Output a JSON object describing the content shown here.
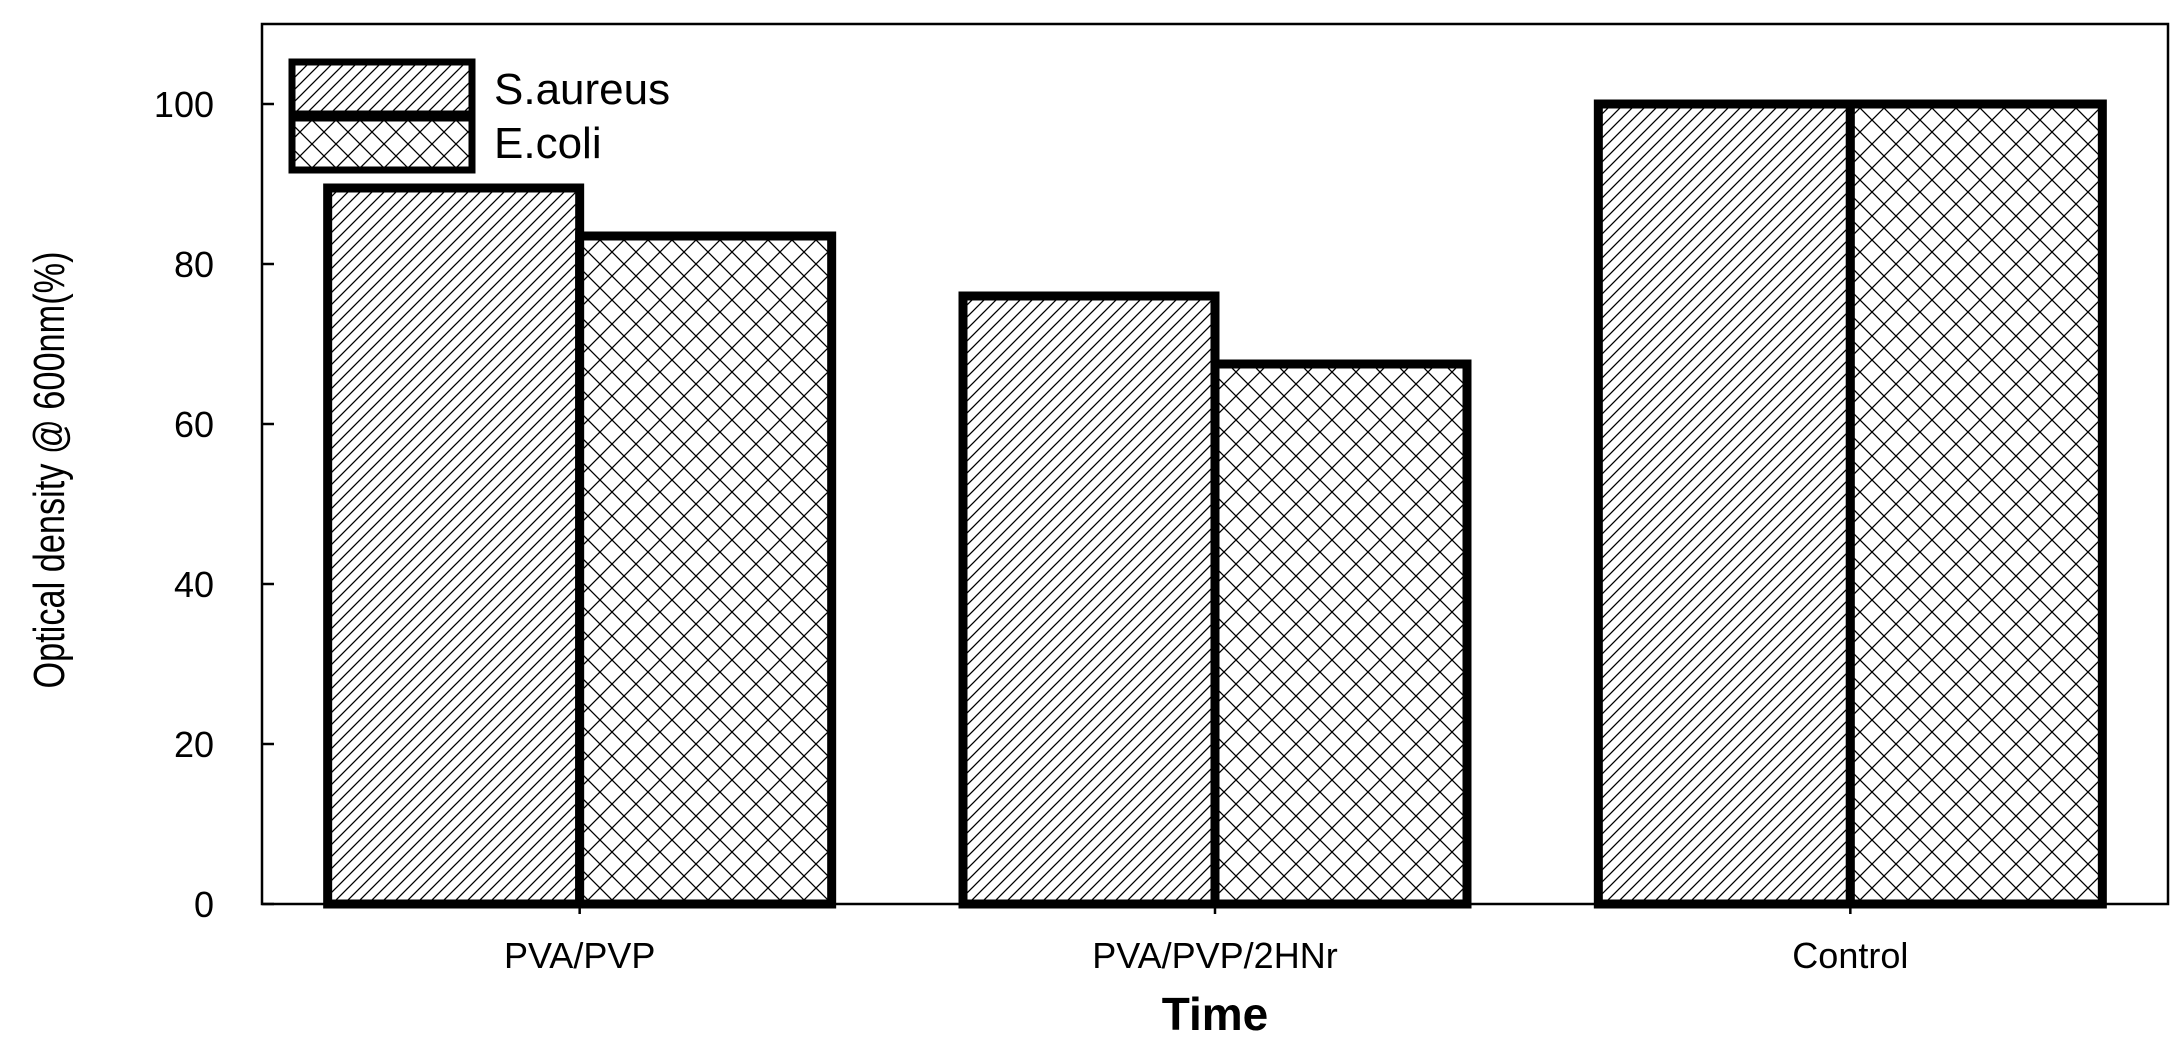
{
  "chart_data": {
    "type": "bar",
    "title": "",
    "xlabel": "Time",
    "ylabel": "Optical density @ 600nm(%)",
    "categories": [
      "PVA/PVP",
      "PVA/PVP/2HNr",
      "Control"
    ],
    "series": [
      {
        "name": "S.aureus",
        "values": [
          89.5,
          76,
          100
        ],
        "pattern": "diagonal-hatch"
      },
      {
        "name": "E.coli",
        "values": [
          83.5,
          67.5,
          100
        ],
        "pattern": "cross-hatch"
      }
    ],
    "ylim": [
      0,
      110
    ],
    "yticks": [
      0,
      20,
      40,
      60,
      80,
      100
    ],
    "grid": false,
    "legend_position": "top-left",
    "colors": {
      "bar_stroke": "#000000",
      "bar_fill": "#ffffff",
      "hatch": "#000000"
    }
  }
}
